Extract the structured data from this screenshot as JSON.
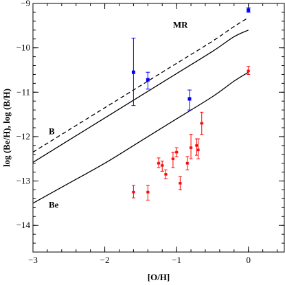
{
  "chart_data": {
    "type": "scatter",
    "title": "",
    "xlabel": "[O/H]",
    "ylabel": "log (Be/H),  log (B/H)",
    "xlim": [
      -3,
      0.5
    ],
    "ylim": [
      -14.6,
      -9
    ],
    "xticks": [
      -3,
      -2,
      -1,
      0
    ],
    "yticks": [
      -14,
      -13,
      -12,
      -11,
      -10,
      -9
    ],
    "x_tick_labels": [
      "−3",
      "−2",
      "−1",
      "0"
    ],
    "y_tick_labels": [
      "−14",
      "−13",
      "−12",
      "−11",
      "−10",
      "−9"
    ],
    "grid": false,
    "legend": "none",
    "annotations": [
      {
        "text": "MR",
        "x": -1.05,
        "y": -9.55
      },
      {
        "text": "B",
        "x": -2.78,
        "y": -11.95
      },
      {
        "text": "Be",
        "x": -2.78,
        "y": -13.6
      }
    ],
    "series": [
      {
        "kind": "line",
        "style": "dashed",
        "color": "#000000",
        "points": [
          [
            -3,
            -12.35
          ],
          [
            -2.5,
            -11.85
          ],
          [
            -2,
            -11.35
          ],
          [
            -1.5,
            -10.85
          ],
          [
            -1,
            -10.35
          ],
          [
            -0.5,
            -9.85
          ],
          [
            -0.2,
            -9.52
          ],
          [
            0,
            -9.32
          ]
        ]
      },
      {
        "kind": "line",
        "style": "solid",
        "color": "#000000",
        "points": [
          [
            -3,
            -12.58
          ],
          [
            -2.5,
            -12.08
          ],
          [
            -2,
            -11.58
          ],
          [
            -1.5,
            -11.08
          ],
          [
            -1,
            -10.58
          ],
          [
            -0.5,
            -10.08
          ],
          [
            -0.2,
            -9.75
          ],
          [
            0,
            -9.6
          ]
        ]
      },
      {
        "kind": "line",
        "style": "solid",
        "color": "#000000",
        "points": [
          [
            -3,
            -13.5
          ],
          [
            -2.5,
            -13.05
          ],
          [
            -2,
            -12.6
          ],
          [
            -1.5,
            -12.1
          ],
          [
            -1,
            -11.6
          ],
          [
            -0.5,
            -11.1
          ],
          [
            -0.2,
            -10.75
          ],
          [
            0,
            -10.55
          ]
        ]
      },
      {
        "kind": "points",
        "marker": "square",
        "color": "#0000ff",
        "points": [
          {
            "x": -1.6,
            "y": -10.55,
            "yerr_low": -11.3,
            "yerr_high": -9.78
          },
          {
            "x": -1.4,
            "y": -10.72,
            "yerr_low": -10.93,
            "yerr_high": -10.55
          },
          {
            "x": -0.82,
            "y": -11.15,
            "yerr_low": -11.4,
            "yerr_high": -10.95
          },
          {
            "x": 0.0,
            "y": -9.15,
            "yerr_low": -9.2,
            "yerr_high": -9.1
          }
        ]
      },
      {
        "kind": "points",
        "marker": "asterisk",
        "color": "#ff0000",
        "points": [
          {
            "x": -1.6,
            "y": -13.25,
            "yerr_low": -13.38,
            "yerr_high": -13.1
          },
          {
            "x": -1.4,
            "y": -13.25,
            "yerr_low": -13.43,
            "yerr_high": -13.1
          },
          {
            "x": -1.25,
            "y": -12.6,
            "yerr_low": -12.7,
            "yerr_high": -12.48
          },
          {
            "x": -1.2,
            "y": -12.65,
            "yerr_low": -12.78,
            "yerr_high": -12.55
          },
          {
            "x": -1.15,
            "y": -12.85,
            "yerr_low": -12.95,
            "yerr_high": -12.75
          },
          {
            "x": -1.05,
            "y": -12.5,
            "yerr_low": -12.7,
            "yerr_high": -12.35
          },
          {
            "x": -1.0,
            "y": -12.35,
            "yerr_low": -12.45,
            "yerr_high": -12.25
          },
          {
            "x": -0.95,
            "y": -13.05,
            "yerr_low": -13.2,
            "yerr_high": -12.9
          },
          {
            "x": -0.85,
            "y": -12.6,
            "yerr_low": -12.75,
            "yerr_high": -12.45
          },
          {
            "x": -0.8,
            "y": -12.25,
            "yerr_low": -12.5,
            "yerr_high": -11.95
          },
          {
            "x": -0.72,
            "y": -12.2,
            "yerr_low": -12.42,
            "yerr_high": -12.05
          },
          {
            "x": -0.7,
            "y": -12.3,
            "yerr_low": -12.5,
            "yerr_high": -12.05
          },
          {
            "x": -0.65,
            "y": -11.7,
            "yerr_low": -11.95,
            "yerr_high": -11.45
          },
          {
            "x": 0.0,
            "y": -10.52,
            "yerr_low": -10.6,
            "yerr_high": -10.42
          }
        ]
      }
    ]
  }
}
